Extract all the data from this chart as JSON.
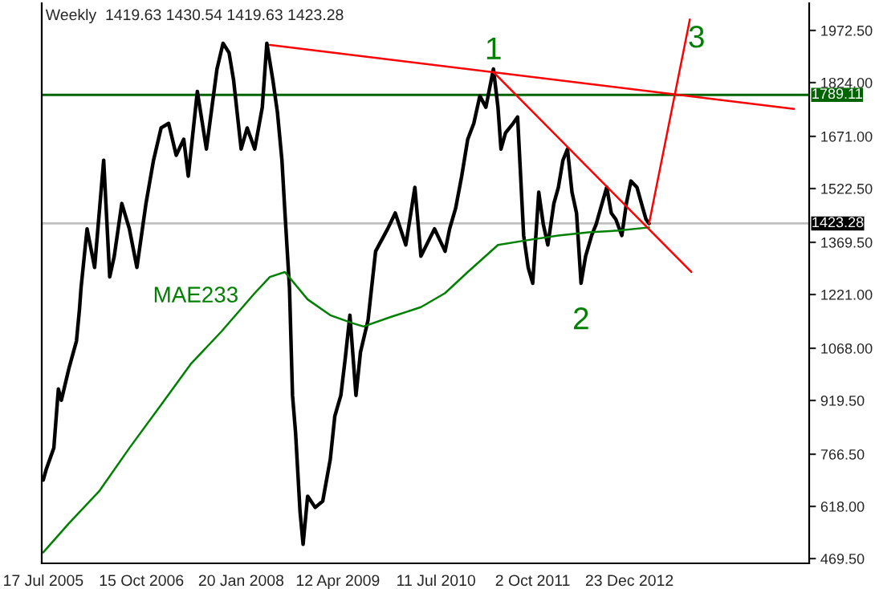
{
  "chart_data": {
    "type": "line",
    "title": "Weekly  1419.63 1430.54 1419.63 1423.28",
    "series": [
      {
        "color": "#000000",
        "x": [
          "2005-07-17",
          "2005-07-31",
          "2005-09-04",
          "2005-09-25",
          "2005-10-09",
          "2005-11-13",
          "2005-12-18",
          "2006-01-01",
          "2006-01-08",
          "2006-02-05",
          "2006-03-12",
          "2006-04-23",
          "2006-05-21",
          "2006-06-11",
          "2006-07-16",
          "2006-08-20",
          "2006-09-24",
          "2006-11-05",
          "2006-12-10",
          "2007-01-14",
          "2007-02-18",
          "2007-03-25",
          "2007-04-29",
          "2007-05-20",
          "2007-07-01",
          "2007-08-12",
          "2007-09-30",
          "2007-10-28",
          "2007-11-25",
          "2007-12-16",
          "2008-01-20",
          "2008-02-17",
          "2008-03-23",
          "2008-04-27",
          "2008-05-18",
          "2008-06-15",
          "2008-07-06",
          "2008-07-27",
          "2008-08-10",
          "2008-08-31",
          "2008-09-14",
          "2008-09-28",
          "2008-10-19",
          "2008-11-02",
          "2008-11-23",
          "2008-12-28",
          "2009-02-01",
          "2009-03-08",
          "2009-03-29",
          "2009-04-26",
          "2009-05-17",
          "2009-06-07",
          "2009-07-05",
          "2009-07-26",
          "2009-08-30",
          "2009-10-04",
          "2009-11-29",
          "2010-01-03",
          "2010-02-21",
          "2010-04-04",
          "2010-05-02",
          "2010-07-04",
          "2010-08-22",
          "2010-09-12",
          "2010-10-10",
          "2010-11-07",
          "2010-12-05",
          "2011-01-02",
          "2011-01-30",
          "2011-02-27",
          "2011-04-03",
          "2011-04-24",
          "2011-05-08",
          "2011-05-29",
          "2011-07-03",
          "2011-07-24",
          "2011-08-07",
          "2011-08-21",
          "2011-09-11",
          "2011-10-02",
          "2011-10-30",
          "2011-11-20",
          "2011-12-11",
          "2012-01-08",
          "2012-01-29",
          "2012-02-19",
          "2012-03-11",
          "2012-04-01",
          "2012-04-22",
          "2012-05-13",
          "2012-06-03",
          "2012-07-01",
          "2012-07-22",
          "2012-08-12",
          "2012-09-09",
          "2012-09-30",
          "2012-10-21",
          "2012-11-18",
          "2012-12-09",
          "2012-12-30",
          "2013-01-27",
          "2013-02-17",
          "2013-03-10",
          "2013-03-24"
        ],
        "values": [
          693,
          724,
          784,
          952,
          920,
          1011,
          1089,
          1180,
          1239,
          1408,
          1298,
          1603,
          1271,
          1330,
          1480,
          1408,
          1298,
          1480,
          1603,
          1695,
          1708,
          1617,
          1663,
          1558,
          1799,
          1635,
          1863,
          1936,
          1909,
          1831,
          1635,
          1695,
          1635,
          1754,
          1936,
          1831,
          1740,
          1603,
          1453,
          1239,
          934,
          829,
          602,
          510,
          647,
          615,
          633,
          752,
          875,
          934,
          1043,
          1162,
          934,
          1057,
          1148,
          1344,
          1408,
          1453,
          1362,
          1526,
          1330,
          1408,
          1344,
          1408,
          1467,
          1558,
          1663,
          1708,
          1786,
          1754,
          1863,
          1754,
          1635,
          1681,
          1708,
          1726,
          1558,
          1389,
          1298,
          1253,
          1512,
          1421,
          1362,
          1480,
          1526,
          1603,
          1635,
          1512,
          1453,
          1253,
          1330,
          1389,
          1421,
          1467,
          1526,
          1453,
          1435,
          1389,
          1480,
          1544,
          1526,
          1480,
          1435,
          1423
        ]
      },
      {
        "name": "MAE233",
        "color": "#008000",
        "x": [
          "2005-07-17",
          "2005-11-13",
          "2006-04-02",
          "2006-08-20",
          "2007-01-14",
          "2007-06-03",
          "2007-10-21",
          "2008-03-23",
          "2008-06-01",
          "2008-08-10",
          "2008-11-23",
          "2009-03-08",
          "2009-06-21",
          "2009-08-09",
          "2009-12-13",
          "2010-05-02",
          "2010-08-22",
          "2010-12-05",
          "2011-04-24",
          "2011-09-11",
          "2012-01-29",
          "2012-06-17",
          "2012-11-04",
          "2013-03-24"
        ],
        "values": [
          487,
          570,
          661,
          784,
          907,
          1025,
          1116,
          1225,
          1271,
          1285,
          1207,
          1162,
          1139,
          1130,
          1157,
          1185,
          1225,
          1285,
          1362,
          1376,
          1389,
          1398,
          1403,
          1412
        ]
      },
      {
        "color": "#ff0000",
        "x": [
          "2008-06-01",
          "2015-01-25"
        ],
        "values": [
          1931,
          1749
        ]
      },
      {
        "color": "#ff0000",
        "x": [
          "2011-04-03",
          "2013-10-06"
        ],
        "values": [
          1854,
          1285
        ]
      },
      {
        "color": "#ff0000",
        "x": [
          "2013-03-24",
          "2013-09-29"
        ],
        "values": [
          1423,
          2004
        ]
      }
    ],
    "annotations": [
      {
        "text": "1",
        "x": "2011-04-03",
        "y": 1863
      },
      {
        "text": "2",
        "x": "2012-05-13",
        "y": 1253
      },
      {
        "text": "3",
        "x": "2013-09-29",
        "y": 2004
      }
    ],
    "ref_lines": [
      {
        "axis": "y",
        "value": 1789.11,
        "label": "1789.11",
        "color": "#006400"
      },
      {
        "axis": "y",
        "value": 1423.28,
        "label": "1423.28",
        "color": "#c0c0c0"
      }
    ],
    "xlim": [
      "2005-07-10",
      "2015-04-05"
    ],
    "xticks": [
      {
        "value": "2005-07-17",
        "label": "17 Jul 2005"
      },
      {
        "value": "2006-10-15",
        "label": "15 Oct 2006"
      },
      {
        "value": "2008-01-20",
        "label": "20 Jan 2008"
      },
      {
        "value": "2009-04-12",
        "label": "12 Apr 2009"
      },
      {
        "value": "2010-07-11",
        "label": "11 Jul 2010"
      },
      {
        "value": "2011-10-02",
        "label": "2 Oct 2011"
      },
      {
        "value": "2012-12-23",
        "label": "23 Dec 2012"
      }
    ],
    "ylim": [
      456,
      2050
    ],
    "yticks": [
      {
        "value": 469.5,
        "label": "469.50"
      },
      {
        "value": 618,
        "label": "618.00"
      },
      {
        "value": 766.5,
        "label": "766.50"
      },
      {
        "value": 919.5,
        "label": "919.50"
      },
      {
        "value": 1068,
        "label": "1068.00"
      },
      {
        "value": 1221,
        "label": "1221.00"
      },
      {
        "value": 1369.5,
        "label": "1369.50"
      },
      {
        "value": 1522.5,
        "label": "1522.50"
      },
      {
        "value": 1671,
        "label": "1671.00"
      },
      {
        "value": 1824,
        "label": "1824.00"
      },
      {
        "value": 1972.5,
        "label": "1972.50"
      }
    ],
    "grid": false,
    "legend": false,
    "marker": "none",
    "line_style": "solid"
  }
}
